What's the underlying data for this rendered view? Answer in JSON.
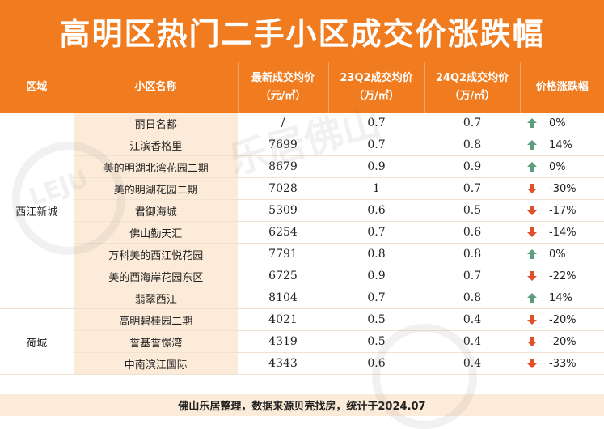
{
  "title": "高明区热门二手小区成交价涨跌幅",
  "headers": {
    "area": "区域",
    "name": "小区名称",
    "latest_line1": "最新成交均价",
    "latest_line2": "（元/㎡）",
    "q23_line1": "23Q2成交均价",
    "q23_line2": "（万/㎡）",
    "q24_line1": "24Q2成交均价",
    "q24_line2": "（万/㎡）",
    "change": "价格涨跌幅"
  },
  "groups": [
    {
      "area": "西江新城",
      "rows": [
        {
          "name": "丽日名都",
          "latest": "/",
          "q23": "0.7",
          "q24": "0.7",
          "change": "0%",
          "dir": "up"
        },
        {
          "name": "江滨香格里",
          "latest": "7699",
          "q23": "0.7",
          "q24": "0.8",
          "change": "14%",
          "dir": "up"
        },
        {
          "name": "美的明湖北湾花园二期",
          "latest": "8679",
          "q23": "0.9",
          "q24": "0.9",
          "change": "0%",
          "dir": "up"
        },
        {
          "name": "美的明湖花园二期",
          "latest": "7028",
          "q23": "1",
          "q24": "0.7",
          "change": "-30%",
          "dir": "down"
        },
        {
          "name": "君御海城",
          "latest": "5309",
          "q23": "0.6",
          "q24": "0.5",
          "change": "-17%",
          "dir": "down"
        },
        {
          "name": "佛山勤天汇",
          "latest": "6254",
          "q23": "0.7",
          "q24": "0.6",
          "change": "-14%",
          "dir": "down"
        },
        {
          "name": "万科美的西江悦花园",
          "latest": "7791",
          "q23": "0.8",
          "q24": "0.8",
          "change": "0%",
          "dir": "up"
        },
        {
          "name": "美的西海岸花园东区",
          "latest": "6725",
          "q23": "0.9",
          "q24": "0.7",
          "change": "-22%",
          "dir": "down"
        },
        {
          "name": "翡翠西江",
          "latest": "8104",
          "q23": "0.7",
          "q24": "0.8",
          "change": "14%",
          "dir": "up"
        }
      ]
    },
    {
      "area": "荷城",
      "rows": [
        {
          "name": "高明碧桂园二期",
          "latest": "4021",
          "q23": "0.5",
          "q24": "0.4",
          "change": "-20%",
          "dir": "down"
        },
        {
          "name": "誉基誉憬湾",
          "latest": "4319",
          "q23": "0.5",
          "q24": "0.4",
          "change": "-20%",
          "dir": "down"
        },
        {
          "name": "中南滨江国际",
          "latest": "4343",
          "q23": "0.6",
          "q24": "0.4",
          "change": "-33%",
          "dir": "down"
        }
      ]
    }
  ],
  "footer": "佛山乐居整理，数据来源贝壳找房，统计于2024.07",
  "colors": {
    "header": "#f07c1f",
    "up": "#5a9e7c",
    "down": "#e0502a",
    "name_bg": "#fcebd8"
  },
  "watermark": {
    "logo_text": "LEJU",
    "brand_text": "乐居佛山"
  }
}
